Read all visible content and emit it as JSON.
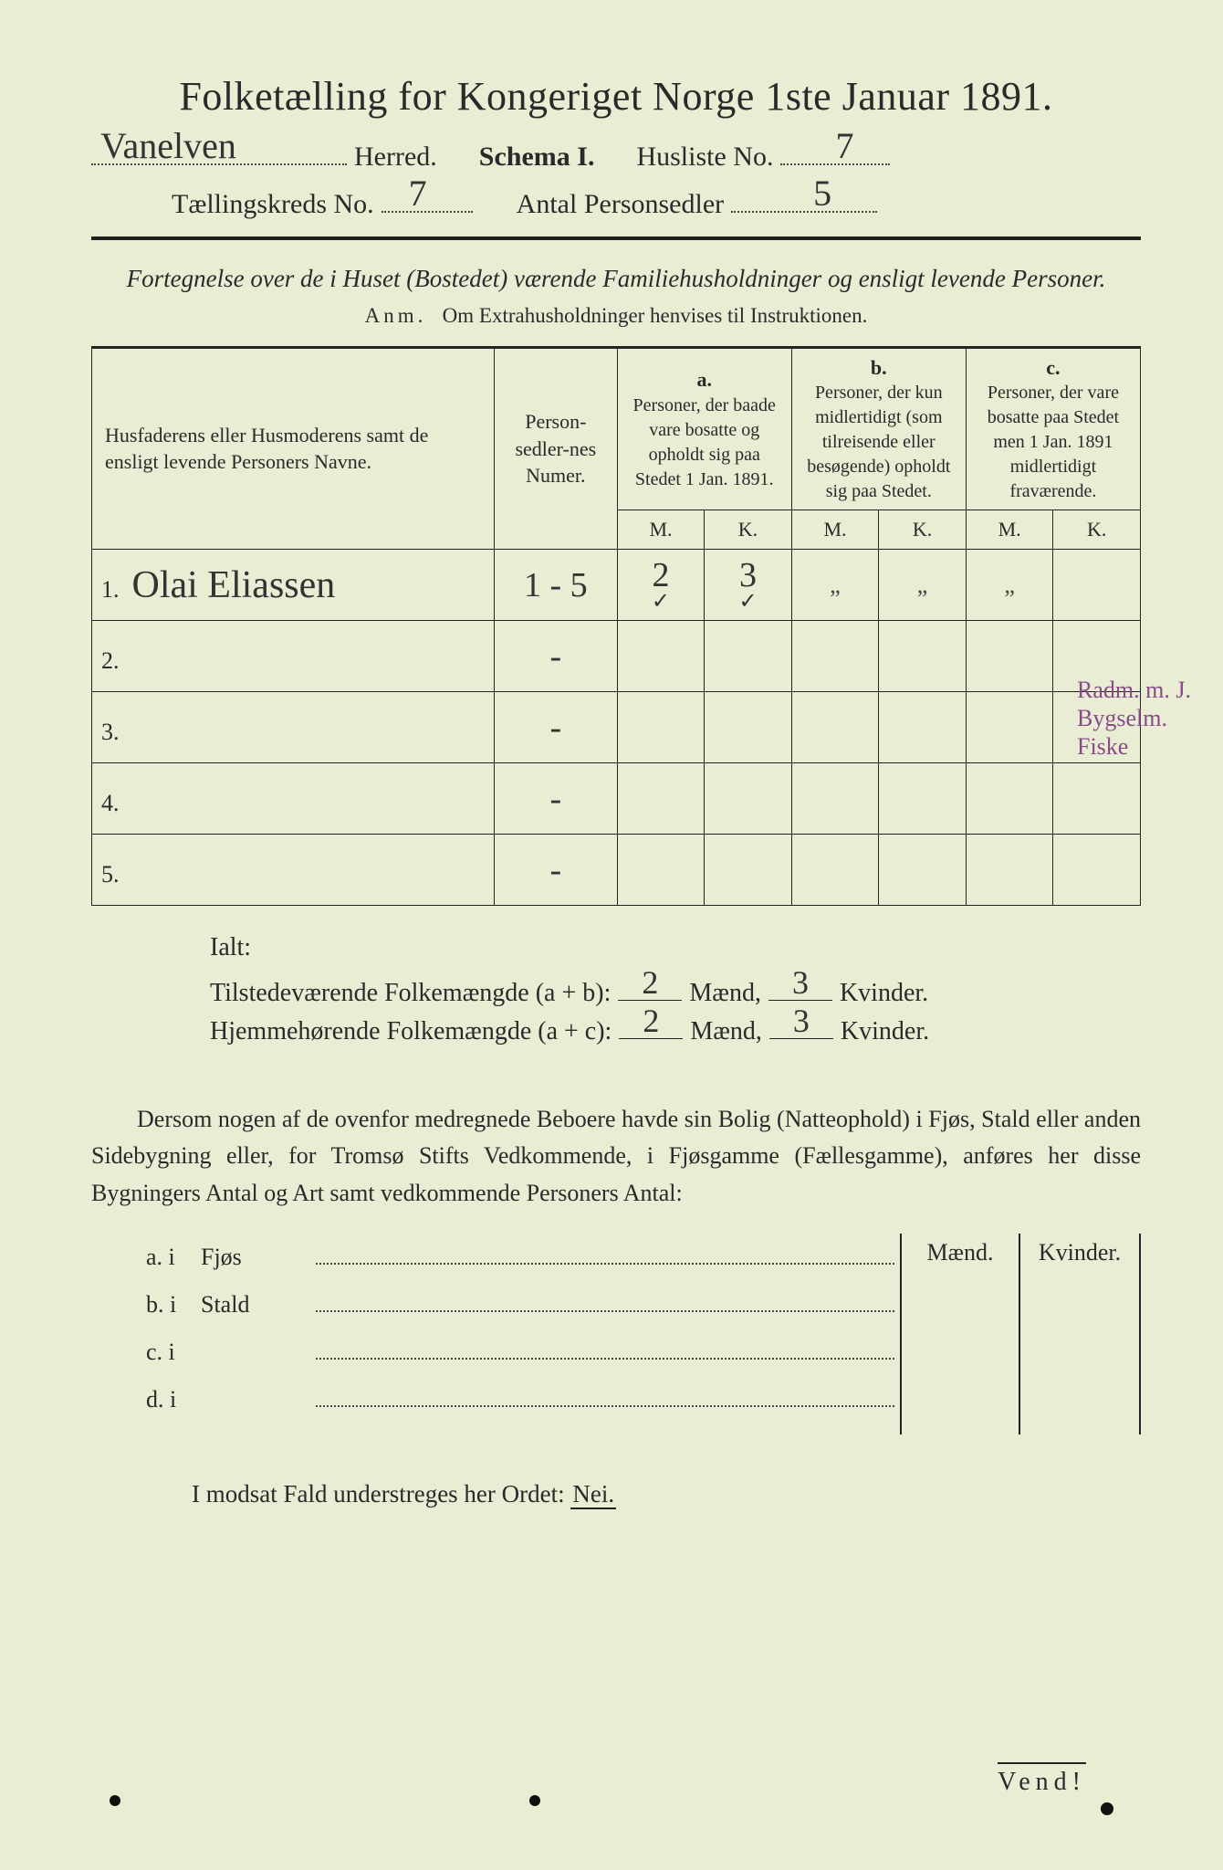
{
  "title": "Folketælling for Kongeriget Norge 1ste Januar 1891.",
  "header": {
    "herred_value": "Vanelven",
    "herred_label": "Herred.",
    "schema_label": "Schema I.",
    "husliste_label": "Husliste No.",
    "husliste_value": "7",
    "kreds_label": "Tællingskreds No.",
    "kreds_value": "7",
    "antal_label": "Antal Personsedler",
    "antal_value": "5"
  },
  "subtitle": "Fortegnelse over de i Huset (Bostedet) værende Familiehusholdninger og ensligt levende Personer.",
  "anm_prefix": "Anm.",
  "anm_text": "Om Extrahusholdninger henvises til Instruktionen.",
  "table": {
    "columns": {
      "name": "Husfaderens eller Husmoderens samt de ensligt levende Personers Navne.",
      "num": "Person-sedler-nes Numer.",
      "a_label": "a.",
      "a_text": "Personer, der baade vare bosatte og opholdt sig paa Stedet 1 Jan. 1891.",
      "b_label": "b.",
      "b_text": "Personer, der kun midlertidigt (som tilreisende eller besøgende) opholdt sig paa Stedet.",
      "c_label": "c.",
      "c_text": "Personer, der vare bosatte paa Stedet men 1 Jan. 1891 midlertidigt fraværende.",
      "M": "M.",
      "K": "K."
    },
    "rows": [
      {
        "n": "1.",
        "name": "Olai Eliassen",
        "num": "1 - 5",
        "aM": "2",
        "aK": "3",
        "bM": "\"",
        "bK": "\"",
        "cM": "\"",
        "cK": ""
      },
      {
        "n": "2.",
        "name": "",
        "num": "-",
        "aM": "",
        "aK": "",
        "bM": "",
        "bK": "",
        "cM": "",
        "cK": ""
      },
      {
        "n": "3.",
        "name": "",
        "num": "-",
        "aM": "",
        "aK": "",
        "bM": "",
        "bK": "",
        "cM": "",
        "cK": ""
      },
      {
        "n": "4.",
        "name": "",
        "num": "-",
        "aM": "",
        "aK": "",
        "bM": "",
        "bK": "",
        "cM": "",
        "cK": ""
      },
      {
        "n": "5.",
        "name": "",
        "num": "-",
        "aM": "",
        "aK": "",
        "bM": "",
        "bK": "",
        "cM": "",
        "cK": ""
      }
    ],
    "row1_checks": {
      "aM": "✓",
      "aK": "✓"
    }
  },
  "margin_note": "Radm. m. J.\nBygselm. Fiske",
  "ialt": {
    "label": "Ialt:",
    "line1_label": "Tilstedeværende Folkemængde (a + b):",
    "line2_label": "Hjemmehørende Folkemængde (a + c):",
    "maend": "Mænd,",
    "kvinder": "Kvinder.",
    "l1_m": "2",
    "l1_k": "3",
    "l2_m": "2",
    "l2_k": "3"
  },
  "para": "Dersom nogen af de ovenfor medregnede Beboere havde sin Bolig (Natteophold) i Fjøs, Stald eller anden Sidebygning eller, for Tromsø Stifts Vedkommende, i Fjøsgamme (Fællesgamme), anføres her disse Bygningers Antal og Art samt vedkommende Personers Antal:",
  "buildings": [
    {
      "lead": "a. i",
      "name": "Fjøs"
    },
    {
      "lead": "b. i",
      "name": "Stald"
    },
    {
      "lead": "c. i",
      "name": ""
    },
    {
      "lead": "d. i",
      "name": ""
    }
  ],
  "mk_labels": {
    "m": "Mænd.",
    "k": "Kvinder."
  },
  "nei_line_prefix": "I modsat Fald understreges her Ordet:",
  "nei_word": "Nei.",
  "vend": "Vend!",
  "colors": {
    "paper": "#e8edd4",
    "ink": "#2a2a2a",
    "handwriting": "#333333",
    "margin_note": "#8a4a8a"
  }
}
